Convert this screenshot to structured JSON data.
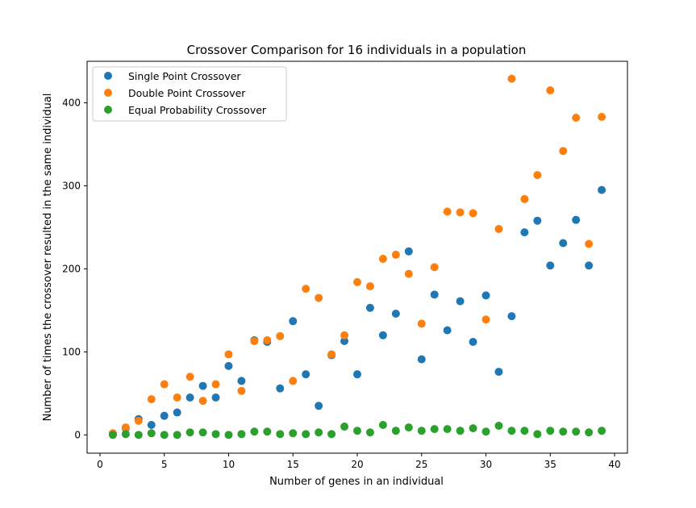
{
  "chart_data": {
    "type": "scatter",
    "title": "Crossover Comparison for 16 individuals in a population",
    "xlabel": "Number of genes in an individual",
    "ylabel": "Number of times the crossover resulted in the same individual",
    "xlim": [
      -1,
      41
    ],
    "ylim": [
      -22,
      450
    ],
    "xticks": [
      0,
      5,
      10,
      15,
      20,
      25,
      30,
      35,
      40
    ],
    "yticks": [
      0,
      100,
      200,
      300,
      400
    ],
    "grid": false,
    "legend_position": "upper left",
    "series": [
      {
        "name": "Single Point Crossover",
        "color": "#1f77b4",
        "x": [
          1,
          2,
          3,
          4,
          5,
          6,
          7,
          8,
          9,
          10,
          11,
          12,
          13,
          14,
          15,
          16,
          17,
          18,
          19,
          20,
          21,
          22,
          23,
          24,
          25,
          26,
          27,
          28,
          29,
          30,
          31,
          32,
          33,
          34,
          35,
          36,
          37,
          38,
          39
        ],
        "y": [
          1,
          8,
          19,
          12,
          23,
          27,
          45,
          59,
          45,
          83,
          65,
          114,
          112,
          56,
          137,
          73,
          35,
          96,
          113,
          73,
          153,
          120,
          146,
          221,
          91,
          169,
          126,
          161,
          112,
          168,
          76,
          143,
          244,
          258,
          204,
          231,
          259,
          204,
          295
        ]
      },
      {
        "name": "Double Point Crossover",
        "color": "#ff7f0e",
        "x": [
          1,
          2,
          3,
          4,
          5,
          6,
          7,
          8,
          9,
          10,
          11,
          12,
          13,
          14,
          15,
          16,
          17,
          18,
          19,
          20,
          21,
          22,
          23,
          24,
          25,
          26,
          27,
          28,
          29,
          30,
          31,
          32,
          33,
          34,
          35,
          36,
          37,
          38,
          39
        ],
        "y": [
          2,
          9,
          17,
          43,
          61,
          45,
          70,
          41,
          61,
          97,
          53,
          113,
          114,
          119,
          65,
          176,
          165,
          97,
          120,
          184,
          179,
          212,
          217,
          194,
          134,
          202,
          269,
          268,
          267,
          139,
          248,
          429,
          284,
          313,
          415,
          342,
          382,
          230,
          383
        ]
      },
      {
        "name": "Equal Probability Crossover",
        "color": "#2ca02c",
        "x": [
          1,
          2,
          3,
          4,
          5,
          6,
          7,
          8,
          9,
          10,
          11,
          12,
          13,
          14,
          15,
          16,
          17,
          18,
          19,
          20,
          21,
          22,
          23,
          24,
          25,
          26,
          27,
          28,
          29,
          30,
          31,
          32,
          33,
          34,
          35,
          36,
          37,
          38,
          39
        ],
        "y": [
          0,
          1,
          0,
          2,
          0,
          0,
          3,
          3,
          1,
          0,
          1,
          4,
          4,
          1,
          2,
          1,
          3,
          1,
          10,
          5,
          3,
          12,
          5,
          9,
          5,
          7,
          7,
          5,
          8,
          4,
          11,
          5,
          5,
          1,
          5,
          4,
          4,
          3,
          5
        ]
      }
    ]
  }
}
